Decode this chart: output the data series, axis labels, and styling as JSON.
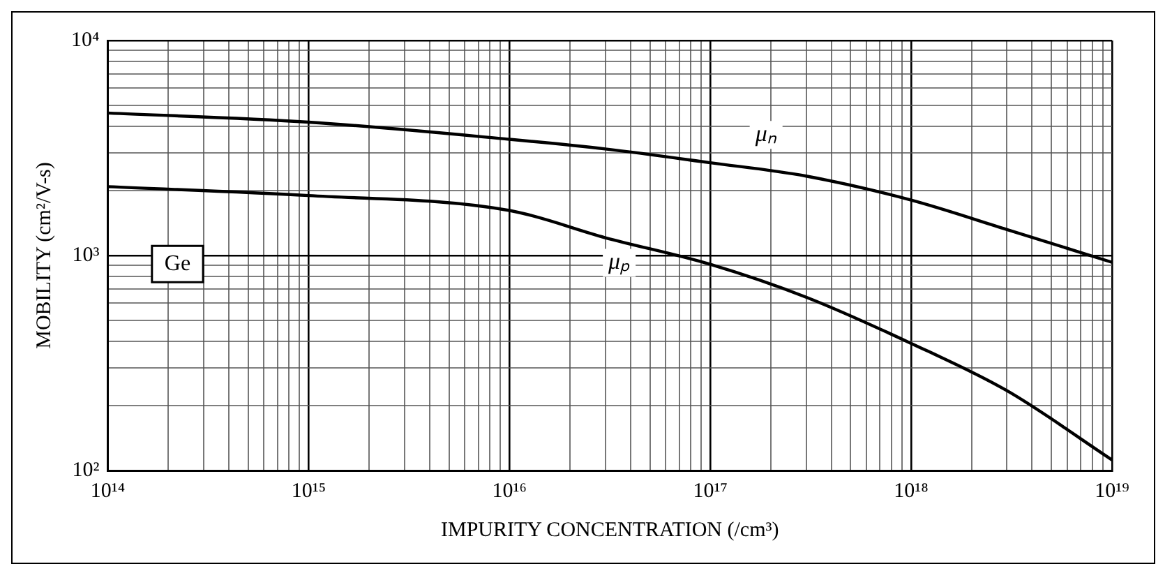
{
  "chart_data": {
    "type": "line",
    "xlabel": "IMPURITY CONCENTRATION (/cm³)",
    "ylabel": "MOBILITY (cm²/V-s)",
    "log": "xy",
    "grid": true,
    "legend": false,
    "marker": "none",
    "line_style": "solid",
    "xlim": [
      100000000000000.0,
      1e+19
    ],
    "ylim": [
      100,
      10000
    ],
    "xticks": [
      {
        "value": 100000000000000.0,
        "label": "10¹⁴"
      },
      {
        "value": 200000000000000.0,
        "label": null
      },
      {
        "value": 300000000000000.0,
        "label": null
      },
      {
        "value": 400000000000000.0,
        "label": null
      },
      {
        "value": 500000000000000.0,
        "label": null
      },
      {
        "value": 600000000000000.0,
        "label": null
      },
      {
        "value": 700000000000000.0,
        "label": null
      },
      {
        "value": 800000000000000.0,
        "label": null
      },
      {
        "value": 900000000000000.0,
        "label": null
      },
      {
        "value": 1000000000000000.0,
        "label": "10¹⁵"
      },
      {
        "value": 2000000000000000.0,
        "label": null
      },
      {
        "value": 3000000000000000.0,
        "label": null
      },
      {
        "value": 4000000000000000.0,
        "label": null
      },
      {
        "value": 5000000000000000.0,
        "label": null
      },
      {
        "value": 6000000000000000.0,
        "label": null
      },
      {
        "value": 7000000000000000.0,
        "label": null
      },
      {
        "value": 8000000000000000.0,
        "label": null
      },
      {
        "value": 9000000000000000.0,
        "label": null
      },
      {
        "value": 1e+16,
        "label": "10¹⁶"
      },
      {
        "value": 2e+16,
        "label": null
      },
      {
        "value": 3e+16,
        "label": null
      },
      {
        "value": 4e+16,
        "label": null
      },
      {
        "value": 5e+16,
        "label": null
      },
      {
        "value": 6e+16,
        "label": null
      },
      {
        "value": 7e+16,
        "label": null
      },
      {
        "value": 8e+16,
        "label": null
      },
      {
        "value": 9e+16,
        "label": null
      },
      {
        "value": 1e+17,
        "label": "10¹⁷"
      },
      {
        "value": 2e+17,
        "label": null
      },
      {
        "value": 3e+17,
        "label": null
      },
      {
        "value": 4e+17,
        "label": null
      },
      {
        "value": 5e+17,
        "label": null
      },
      {
        "value": 6e+17,
        "label": null
      },
      {
        "value": 7e+17,
        "label": null
      },
      {
        "value": 8e+17,
        "label": null
      },
      {
        "value": 9e+17,
        "label": null
      },
      {
        "value": 1e+18,
        "label": "10¹⁸"
      },
      {
        "value": 2e+18,
        "label": null
      },
      {
        "value": 3e+18,
        "label": null
      },
      {
        "value": 4e+18,
        "label": null
      },
      {
        "value": 5e+18,
        "label": null
      },
      {
        "value": 6e+18,
        "label": null
      },
      {
        "value": 7e+18,
        "label": null
      },
      {
        "value": 8e+18,
        "label": null
      },
      {
        "value": 9e+18,
        "label": null
      },
      {
        "value": 1e+19,
        "label": "10¹⁹"
      }
    ],
    "yticks": [
      {
        "value": 100,
        "label": "10²"
      },
      {
        "value": 200,
        "label": null
      },
      {
        "value": 300,
        "label": null
      },
      {
        "value": 400,
        "label": null
      },
      {
        "value": 500,
        "label": null
      },
      {
        "value": 600,
        "label": null
      },
      {
        "value": 700,
        "label": null
      },
      {
        "value": 800,
        "label": null
      },
      {
        "value": 900,
        "label": null
      },
      {
        "value": 1000,
        "label": "10³"
      },
      {
        "value": 2000,
        "label": null
      },
      {
        "value": 3000,
        "label": null
      },
      {
        "value": 4000,
        "label": null
      },
      {
        "value": 5000,
        "label": null
      },
      {
        "value": 6000,
        "label": null
      },
      {
        "value": 7000,
        "label": null
      },
      {
        "value": 8000,
        "label": null
      },
      {
        "value": 9000,
        "label": null
      },
      {
        "value": 10000,
        "label": "10⁴"
      }
    ],
    "x": [
      100000000000000.0,
      1000000000000000.0,
      1e+16,
      3e+16,
      1e+17,
      3e+17,
      1e+18,
      3e+18,
      1e+19
    ],
    "series": [
      {
        "name": "μₙ",
        "color": "#000000",
        "values": [
          4600,
          4170,
          3470,
          3130,
          2700,
          2340,
          1810,
          1320,
          930
        ]
      },
      {
        "name": "μₚ",
        "color": "#000000",
        "values": [
          2090,
          1900,
          1620,
          1210,
          910,
          640,
          390,
          235,
          112
        ]
      }
    ],
    "annotations": [
      "Ge"
    ]
  }
}
